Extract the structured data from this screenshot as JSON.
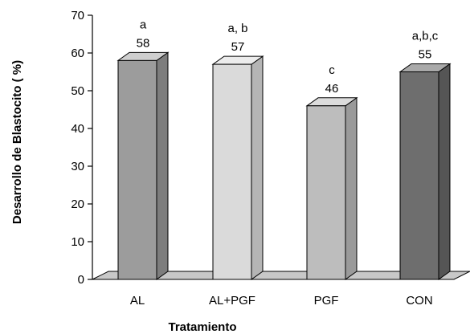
{
  "chart_data": {
    "type": "bar",
    "title": "",
    "xlabel": "Tratamiento",
    "ylabel": "Desarrollo de Blastocito  ( %)",
    "categories": [
      "AL",
      "AL+PGF",
      "PGF",
      "CON"
    ],
    "values": [
      58,
      57,
      46,
      55
    ],
    "data_labels": [
      "58",
      "57",
      "46",
      "55"
    ],
    "significance_labels": [
      "a",
      "a, b",
      "c",
      "a,b,c"
    ],
    "ylim": [
      0,
      70
    ],
    "yticks": [
      0,
      10,
      20,
      30,
      40,
      50,
      60,
      70
    ],
    "grid": false,
    "legend": "none",
    "bar_style": "3d",
    "colors": {
      "bar_fronts": [
        "#9c9c9c",
        "#dadada",
        "#bdbdbd",
        "#6e6e6e"
      ],
      "bar_tops": [
        "#cfcfcf",
        "#ececec",
        "#dcdcdc",
        "#a9a9a9"
      ],
      "bar_sides": [
        "#7d7d7d",
        "#b5b5b5",
        "#9a9a9a",
        "#555555"
      ],
      "floor": "#c8c8c8",
      "outline": "#000000"
    }
  }
}
